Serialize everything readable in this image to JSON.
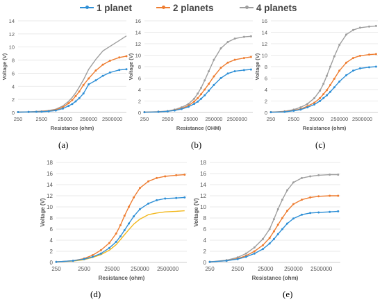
{
  "legend": {
    "position": "top",
    "items": [
      {
        "label": "1 planet",
        "color": "#2e8fd6"
      },
      {
        "label": "2 planets",
        "color": "#ee7d31"
      },
      {
        "label": "4 planets",
        "color": "#9e9e9e"
      }
    ]
  },
  "captions": [
    "(a)",
    "(b)",
    "(c)",
    "(d)",
    "(e)"
  ],
  "chart_data": [
    {
      "id": "a",
      "type": "line",
      "grid": true,
      "xscale": "log",
      "xlabel": "Resistance (ohm)",
      "ylabel": "Voltage (V)",
      "ylim": [
        0,
        14
      ],
      "yticks": [
        0,
        2,
        4,
        6,
        8,
        10,
        12,
        14
      ],
      "xlim": [
        250,
        10000000
      ],
      "xticks": [
        250,
        2500,
        25000,
        250000,
        2500000
      ],
      "series": [
        {
          "name": "1 planet",
          "color": "#2e8fd6",
          "markers": true,
          "x": [
            250,
            700,
            1500,
            2500,
            5000,
            10000,
            20000,
            35000,
            50000,
            70000,
            100000,
            150000,
            250000,
            500000,
            1000000,
            2000000,
            5000000,
            10000000
          ],
          "y": [
            0.05,
            0.08,
            0.1,
            0.12,
            0.18,
            0.3,
            0.6,
            1.0,
            1.3,
            1.7,
            2.2,
            2.9,
            4.3,
            4.9,
            5.6,
            6.1,
            6.5,
            6.6
          ]
        },
        {
          "name": "2 planets",
          "color": "#ee7d31",
          "markers": true,
          "x": [
            250,
            700,
            1500,
            2500,
            5000,
            10000,
            20000,
            35000,
            50000,
            70000,
            100000,
            150000,
            250000,
            500000,
            1000000,
            2000000,
            5000000,
            10000000
          ],
          "y": [
            0.05,
            0.08,
            0.12,
            0.15,
            0.22,
            0.4,
            0.8,
            1.4,
            1.9,
            2.5,
            3.2,
            4.2,
            5.2,
            6.4,
            7.3,
            7.9,
            8.4,
            8.6
          ]
        },
        {
          "name": "4 planets",
          "color": "#9e9e9e",
          "markers": false,
          "x": [
            250,
            700,
            1500,
            2500,
            5000,
            10000,
            20000,
            35000,
            50000,
            70000,
            100000,
            150000,
            250000,
            500000,
            1000000,
            2000000,
            5000000,
            10000000
          ],
          "y": [
            0.05,
            0.1,
            0.15,
            0.2,
            0.3,
            0.5,
            1.0,
            1.7,
            2.3,
            3.0,
            3.9,
            5.0,
            6.6,
            8.1,
            9.4,
            10.1,
            11.0,
            11.7
          ]
        }
      ]
    },
    {
      "id": "b",
      "type": "line",
      "grid": true,
      "xscale": "log",
      "xlabel": "Resistance (OHM)",
      "ylabel": "Voltage (V)",
      "ylim": [
        0,
        16
      ],
      "yticks": [
        0,
        2,
        4,
        6,
        8,
        10,
        12,
        14,
        16
      ],
      "xlim": [
        250,
        12000000
      ],
      "xticks": [
        250,
        2500,
        25000,
        250000,
        2500000
      ],
      "series": [
        {
          "name": "1 planet",
          "color": "#2e8fd6",
          "markers": true,
          "x": [
            250,
            1000,
            2500,
            5000,
            10000,
            20000,
            35000,
            50000,
            70000,
            100000,
            150000,
            250000,
            500000,
            1000000,
            2000000,
            5000000,
            10000000
          ],
          "y": [
            0.05,
            0.1,
            0.2,
            0.35,
            0.6,
            1.0,
            1.5,
            1.9,
            2.4,
            3.0,
            3.8,
            4.8,
            6.0,
            6.8,
            7.2,
            7.4,
            7.5
          ]
        },
        {
          "name": "2 planets",
          "color": "#ee7d31",
          "markers": true,
          "x": [
            250,
            1000,
            2500,
            5000,
            10000,
            20000,
            35000,
            50000,
            70000,
            100000,
            150000,
            250000,
            500000,
            1000000,
            2000000,
            5000000,
            10000000
          ],
          "y": [
            0.05,
            0.1,
            0.2,
            0.4,
            0.7,
            1.2,
            1.9,
            2.5,
            3.2,
            4.0,
            5.0,
            6.3,
            7.8,
            8.7,
            9.2,
            9.5,
            9.7
          ]
        },
        {
          "name": "4 planets",
          "color": "#9e9e9e",
          "markers": true,
          "x": [
            250,
            1000,
            2500,
            5000,
            10000,
            20000,
            35000,
            50000,
            70000,
            100000,
            150000,
            250000,
            500000,
            1000000,
            2000000,
            5000000,
            10000000
          ],
          "y": [
            0.05,
            0.15,
            0.25,
            0.5,
            0.9,
            1.5,
            2.4,
            3.3,
            4.3,
            5.6,
            7.2,
            9.2,
            11.2,
            12.3,
            12.9,
            13.2,
            13.3
          ]
        }
      ]
    },
    {
      "id": "c",
      "type": "line",
      "grid": true,
      "xscale": "log",
      "xlabel": "Resistance (ohm)",
      "ylabel": "Voltage (V)",
      "ylim": [
        0,
        16
      ],
      "yticks": [
        0,
        2,
        4,
        6,
        8,
        10,
        12,
        14,
        16
      ],
      "xlim": [
        250,
        12000000
      ],
      "xticks": [
        250,
        2500,
        25000,
        250000,
        2500000
      ],
      "series": [
        {
          "name": "1 planet",
          "color": "#2e8fd6",
          "markers": true,
          "x": [
            250,
            1000,
            2500,
            5000,
            10000,
            20000,
            35000,
            50000,
            70000,
            100000,
            150000,
            250000,
            500000,
            1000000,
            2000000,
            5000000,
            10000000
          ],
          "y": [
            0.05,
            0.1,
            0.3,
            0.5,
            0.9,
            1.4,
            2.0,
            2.5,
            3.0,
            3.6,
            4.4,
            5.4,
            6.5,
            7.3,
            7.7,
            7.9,
            8.0
          ]
        },
        {
          "name": "2 planets",
          "color": "#ee7d31",
          "markers": true,
          "x": [
            250,
            1000,
            2500,
            5000,
            10000,
            20000,
            35000,
            50000,
            70000,
            100000,
            150000,
            250000,
            500000,
            1000000,
            2000000,
            5000000,
            10000000
          ],
          "y": [
            0.05,
            0.15,
            0.35,
            0.6,
            1.1,
            1.7,
            2.5,
            3.2,
            3.9,
            4.8,
            5.9,
            7.3,
            8.7,
            9.5,
            9.9,
            10.1,
            10.2
          ]
        },
        {
          "name": "4 planets",
          "color": "#9e9e9e",
          "markers": true,
          "x": [
            250,
            1000,
            2500,
            5000,
            10000,
            20000,
            35000,
            50000,
            70000,
            100000,
            150000,
            250000,
            500000,
            1000000,
            2000000,
            5000000,
            10000000
          ],
          "y": [
            0.05,
            0.2,
            0.5,
            0.9,
            1.5,
            2.5,
            3.8,
            5.0,
            6.4,
            8.0,
            9.8,
            11.8,
            13.6,
            14.4,
            14.8,
            15.0,
            15.1
          ]
        }
      ]
    },
    {
      "id": "d",
      "type": "line",
      "grid": true,
      "xscale": "log",
      "xlabel": "Resistance (ohm)",
      "ylabel": "Voltage (V)",
      "ylim": [
        0,
        18
      ],
      "yticks": [
        0,
        2,
        4,
        6,
        8,
        10,
        12,
        14,
        16,
        18
      ],
      "xlim": [
        250,
        12000000
      ],
      "xticks": [
        250,
        2500,
        25000,
        250000,
        2500000
      ],
      "series": [
        {
          "name": "1 planet",
          "color": "#2e8fd6",
          "markers": true,
          "x": [
            250,
            1000,
            2500,
            5000,
            10000,
            20000,
            35000,
            50000,
            70000,
            100000,
            150000,
            250000,
            500000,
            1000000,
            2000000,
            5000000,
            10000000
          ],
          "y": [
            0.1,
            0.3,
            0.6,
            1.0,
            1.6,
            2.6,
            3.7,
            4.7,
            5.8,
            7.0,
            8.3,
            9.6,
            10.6,
            11.2,
            11.5,
            11.6,
            11.7
          ]
        },
        {
          "name": "2 planets",
          "color": "#ee7d31",
          "markers": true,
          "x": [
            250,
            1000,
            2500,
            5000,
            10000,
            20000,
            35000,
            50000,
            70000,
            100000,
            150000,
            250000,
            500000,
            1000000,
            2000000,
            5000000,
            10000000
          ],
          "y": [
            0.1,
            0.3,
            0.7,
            1.3,
            2.2,
            3.5,
            5.2,
            6.7,
            8.4,
            10.0,
            11.7,
            13.4,
            14.6,
            15.2,
            15.5,
            15.7,
            15.8
          ]
        },
        {
          "name": "",
          "color": "#f2b81e",
          "markers": false,
          "x": [
            250,
            1000,
            2500,
            5000,
            10000,
            20000,
            35000,
            50000,
            70000,
            100000,
            150000,
            250000,
            500000,
            1000000,
            2000000,
            5000000,
            10000000
          ],
          "y": [
            0.1,
            0.25,
            0.5,
            0.9,
            1.4,
            2.2,
            3.2,
            4.1,
            5.0,
            5.9,
            6.9,
            7.8,
            8.6,
            8.9,
            9.1,
            9.2,
            9.3
          ]
        }
      ]
    },
    {
      "id": "e",
      "type": "line",
      "grid": true,
      "xscale": "log",
      "xlabel": "Resistance (ohm)",
      "ylabel": "Voltage (V)",
      "ylim": [
        0,
        18
      ],
      "yticks": [
        0,
        2,
        4,
        6,
        8,
        10,
        12,
        14,
        16,
        18
      ],
      "xlim": [
        250,
        12000000
      ],
      "xticks": [
        250,
        2500,
        25000,
        250000,
        2500000
      ],
      "series": [
        {
          "name": "1 planet",
          "color": "#2e8fd6",
          "markers": true,
          "x": [
            250,
            1000,
            2500,
            5000,
            10000,
            20000,
            35000,
            50000,
            70000,
            100000,
            150000,
            250000,
            500000,
            1000000,
            2000000,
            5000000,
            10000000
          ],
          "y": [
            0.1,
            0.3,
            0.6,
            1.0,
            1.6,
            2.4,
            3.4,
            4.2,
            5.1,
            6.0,
            7.0,
            7.9,
            8.6,
            8.9,
            9.0,
            9.1,
            9.2
          ]
        },
        {
          "name": "2 planets",
          "color": "#ee7d31",
          "markers": true,
          "x": [
            250,
            1000,
            2500,
            5000,
            10000,
            20000,
            35000,
            50000,
            70000,
            100000,
            150000,
            250000,
            500000,
            1000000,
            2000000,
            5000000,
            10000000
          ],
          "y": [
            0.1,
            0.3,
            0.7,
            1.2,
            2.0,
            3.1,
            4.4,
            5.6,
            6.8,
            8.0,
            9.3,
            10.5,
            11.3,
            11.7,
            11.9,
            12.0,
            12.0
          ]
        },
        {
          "name": "4 planets",
          "color": "#9e9e9e",
          "markers": true,
          "x": [
            250,
            1000,
            2500,
            5000,
            10000,
            20000,
            35000,
            50000,
            70000,
            100000,
            150000,
            250000,
            500000,
            1000000,
            2000000,
            5000000,
            10000000
          ],
          "y": [
            0.1,
            0.4,
            0.9,
            1.6,
            2.7,
            4.2,
            6.0,
            7.8,
            9.6,
            11.3,
            13.0,
            14.4,
            15.2,
            15.5,
            15.7,
            15.8,
            15.8
          ]
        }
      ]
    }
  ]
}
